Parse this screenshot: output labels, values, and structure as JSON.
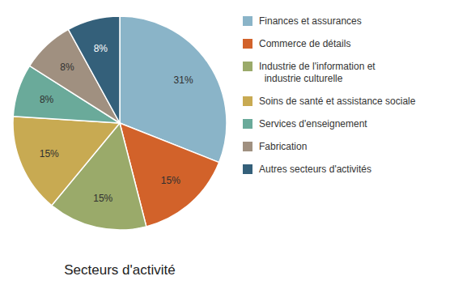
{
  "chart_data": {
    "type": "pie",
    "title": "Secteurs d'activité",
    "categories": [
      "Finances et assurances",
      "Commerce de détails",
      "Industrie de l'information et\n  industrie culturelle",
      "Soins de santé et assistance sociale",
      "Services d'enseignement",
      "Fabrication",
      "Autres secteurs d'activités"
    ],
    "values": [
      31,
      15,
      15,
      15,
      8,
      8,
      8
    ],
    "value_labels": [
      "31%",
      "15%",
      "15%",
      "15%",
      "8%",
      "8%",
      "8%"
    ],
    "colors": [
      "#8ab4c8",
      "#d2622a",
      "#9aaa6a",
      "#c8aa52",
      "#6aaa9a",
      "#a09080",
      "#34607a"
    ],
    "data_labels": true,
    "legend": "right"
  }
}
